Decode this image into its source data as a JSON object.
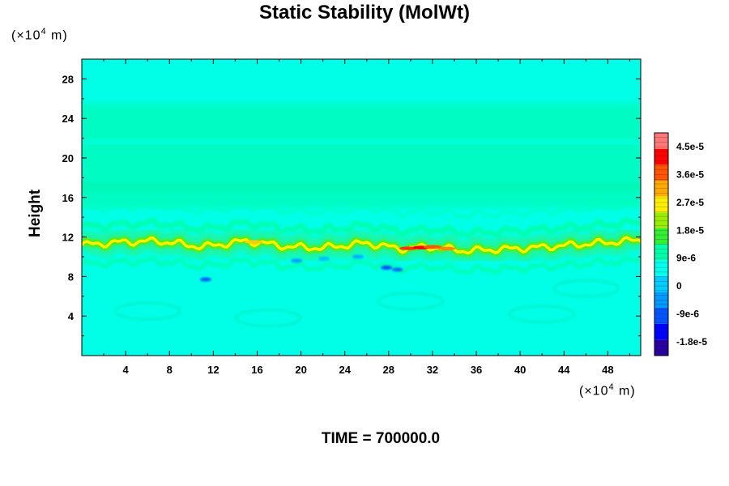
{
  "chart_data": {
    "type": "heatmap",
    "title": "Static Stability (MolWt)",
    "ylabel": "Height",
    "y_unit": "(×10⁴ m)",
    "x_unit": "(×10⁴ m)",
    "time_label": "TIME = 700000.0",
    "xlim": [
      0,
      51
    ],
    "ylim": [
      0,
      30
    ],
    "x_ticks": [
      4,
      8,
      12,
      16,
      20,
      24,
      28,
      32,
      36,
      40,
      44,
      48
    ],
    "y_ticks": [
      4,
      8,
      12,
      16,
      20,
      24,
      28
    ],
    "x_tick_labels": [
      "4",
      "8",
      "12",
      "16",
      "20",
      "24",
      "28",
      "32",
      "36",
      "40",
      "44",
      "48"
    ],
    "y_tick_labels": [
      "4",
      "8",
      "12",
      "16",
      "20",
      "24",
      "28"
    ],
    "colorbar": {
      "min": -2.25e-05,
      "max": 4.95e-05,
      "ticks": [
        4.5e-05,
        3.6e-05,
        2.7e-05,
        1.8e-05,
        9e-06,
        0,
        -9e-06,
        -1.8e-05
      ],
      "tick_labels": [
        "4.5e-5",
        "3.6e-5",
        "2.7e-5",
        "1.8e-5",
        "9e-6",
        "0",
        "-9e-6",
        "-1.8e-5"
      ],
      "colors": [
        "#2a00a0",
        "#0000ff",
        "#0055ff",
        "#0099ff",
        "#00ccff",
        "#00ffee",
        "#00ffaa",
        "#33ee33",
        "#99ee00",
        "#ffee00",
        "#ffaa00",
        "#ff5500",
        "#ff0000",
        "#ff7777"
      ]
    },
    "band": {
      "center_y": [
        11.2,
        11.5,
        11.6,
        11.0,
        11.6,
        11.0,
        10.9,
        11.4,
        10.8,
        11.0,
        10.6,
        10.9,
        11.7
      ],
      "at_x": [
        0,
        4,
        7,
        11,
        15,
        19,
        22,
        26,
        29,
        32,
        35,
        41,
        51
      ]
    }
  }
}
